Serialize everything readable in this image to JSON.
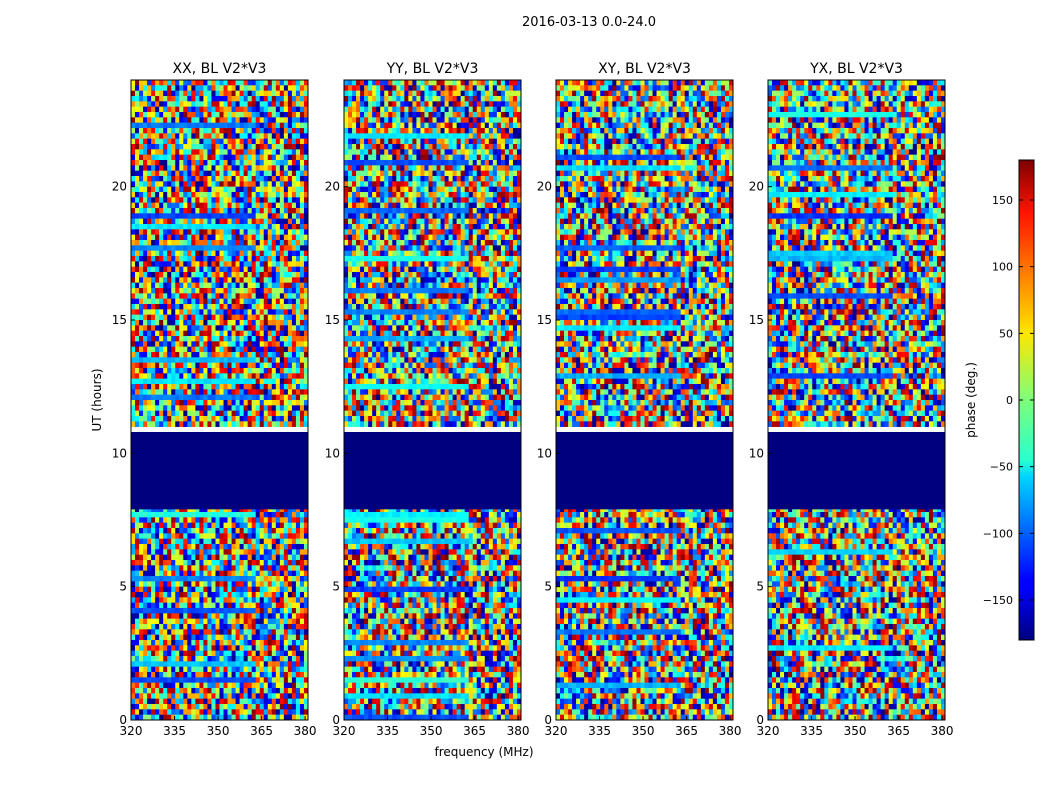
{
  "chart_data": {
    "type": "heatmap",
    "suptitle": "2016-03-13 0.0-24.0",
    "xlabel": "frequency (MHz)",
    "ylabel": "UT (hours)",
    "xlim": [
      320,
      381
    ],
    "ylim": [
      0,
      24
    ],
    "xticks": [
      320,
      335,
      350,
      365,
      380
    ],
    "yticks": [
      0,
      5,
      10,
      15,
      20
    ],
    "panels": [
      {
        "title": "XX, BL V2*V3"
      },
      {
        "title": "YY, BL V2*V3"
      },
      {
        "title": "XY, BL V2*V3"
      },
      {
        "title": "YX, BL V2*V3"
      }
    ],
    "colorbar": {
      "label": "phase (deg.)",
      "range": [
        -180,
        180
      ],
      "ticks": [
        -150,
        -100,
        -50,
        0,
        50,
        100,
        150
      ],
      "colormap": "jet"
    },
    "no_data_interval_hours": [
      7.9,
      10.8
    ]
  }
}
